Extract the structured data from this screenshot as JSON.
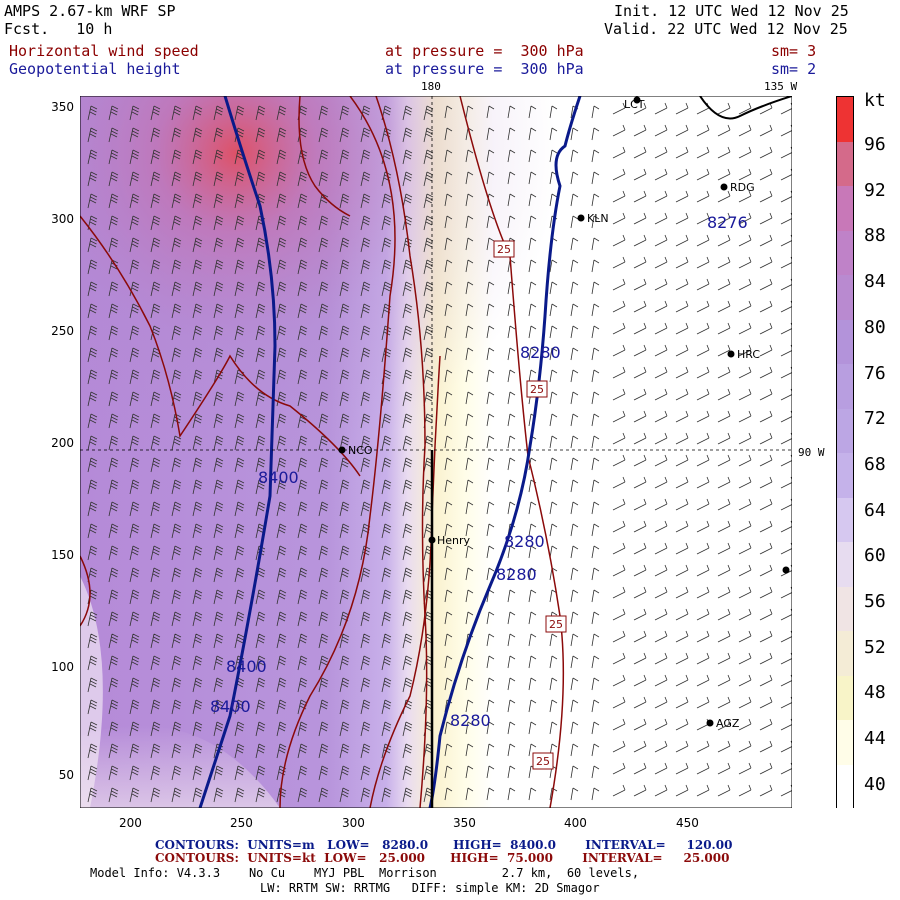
{
  "header": {
    "title": "AMPS 2.67-km WRF SP",
    "fcst": "Fcst.   10 h",
    "init": "Init. 12 UTC Wed 12 Nov 25",
    "valid": "Valid. 22 UTC Wed 12 Nov 25",
    "field1": "Horizontal wind speed",
    "field1_level": "at pressure =  300 hPa",
    "field1_sm": "sm= 3",
    "field2": "Geopotential height",
    "field2_level": "at pressure =  300 hPa",
    "field2_sm": "sm= 2"
  },
  "map": {
    "meridian_180": "180",
    "meridian_135w": "135 W",
    "meridian_90w": "90 W",
    "x_ticks": [
      "200",
      "250",
      "300",
      "350",
      "400",
      "450"
    ],
    "y_ticks": [
      "350",
      "300",
      "250",
      "200",
      "150",
      "100",
      "50"
    ],
    "stations": [
      "LCT",
      "RDG",
      "KLN",
      "HRC",
      "NCO",
      "Henry",
      "AGZ"
    ],
    "height_labels": [
      "8276",
      "8280",
      "8280",
      "8280",
      "8280",
      "8400",
      "8400",
      "8400"
    ],
    "speed_labels": [
      "25",
      "25",
      "25",
      "25"
    ]
  },
  "colorbar": {
    "unit": "kt",
    "labels": [
      "96",
      "92",
      "88",
      "84",
      "80",
      "76",
      "72",
      "68",
      "64",
      "60",
      "56",
      "52",
      "48",
      "44",
      "40"
    ],
    "colors": [
      "#ee3333",
      "#d46a8a",
      "#c878b8",
      "#bf82c8",
      "#b98ad0",
      "#b393da",
      "#b89ee0",
      "#bca6e4",
      "#c5b2ea",
      "#d6c8f0",
      "#e7dcf0",
      "#f0e4e4",
      "#f4ecd6",
      "#f8f4c8",
      "#fffde8",
      "#ffffff"
    ]
  },
  "footer": {
    "contours_m": "CONTOURS:  UNITS=m   LOW=   8280.0      HIGH=  8400.0       INTERVAL=     120.00",
    "contours_kt": "CONTOURS:  UNITS=kt  LOW=   25.000      HIGH=  75.000       INTERVAL=     25.000",
    "model_info": "Model Info: V4.3.3    No Cu    MYJ PBL  Morrison         2.7 km,  60 levels,",
    "physics": "LW: RRTM SW: RRTMG   DIFF: simple KM: 2D Smagor"
  },
  "colors": {
    "height_contour": "#0a1a8a",
    "speed_contour": "#8b0a0a"
  }
}
